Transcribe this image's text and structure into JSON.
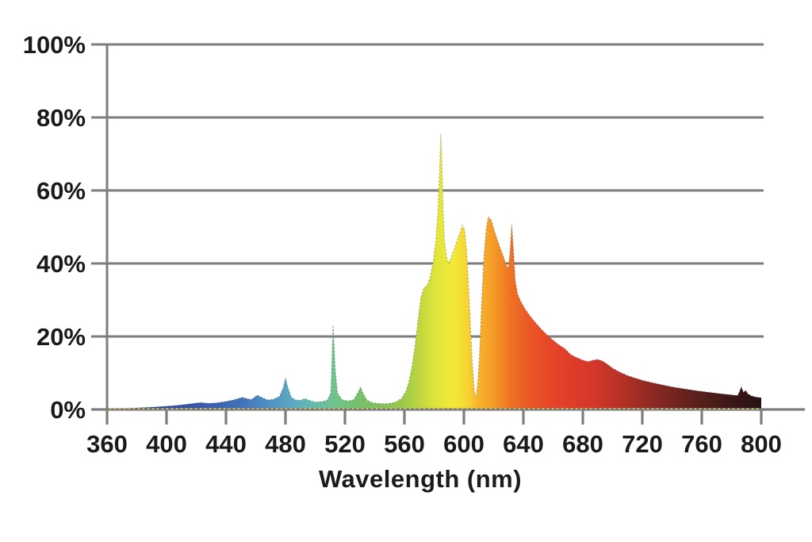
{
  "figure": {
    "background": "#ffffff"
  },
  "chart_data": {
    "type": "area",
    "title": "",
    "xlabel": "Wavelength (nm)",
    "ylabel": "",
    "x_range": [
      360,
      800
    ],
    "y_range": [
      0,
      100
    ],
    "x_ticks": [
      360,
      400,
      440,
      480,
      520,
      560,
      600,
      640,
      680,
      720,
      760,
      800
    ],
    "x_tick_labels": [
      "360",
      "400",
      "440",
      "480",
      "520",
      "560",
      "600",
      "640",
      "680",
      "720",
      "760",
      "800"
    ],
    "y_ticks": [
      0,
      20,
      40,
      60,
      80,
      100
    ],
    "y_tick_labels": [
      "0%",
      "20%",
      "40%",
      "60%",
      "80%",
      "100%"
    ],
    "grid": true,
    "legend_position": "none",
    "style": {
      "grid_color": "#7d7d7d",
      "label_color": "#1a1a1a",
      "edge_stroke": "rgba(40,40,40,0.4)",
      "baseline_dot_color": "#e6cf4b"
    },
    "spectrum_gradient": [
      [
        360,
        "#2b3a71"
      ],
      [
        395,
        "#3247a0"
      ],
      [
        425,
        "#3a5bac"
      ],
      [
        450,
        "#4272b8"
      ],
      [
        470,
        "#4f92c4"
      ],
      [
        487,
        "#5dadc0"
      ],
      [
        500,
        "#66bca8"
      ],
      [
        513,
        "#6fc48d"
      ],
      [
        527,
        "#75c170"
      ],
      [
        543,
        "#7fc25c"
      ],
      [
        558,
        "#97c94d"
      ],
      [
        570,
        "#bed73f"
      ],
      [
        582,
        "#e2e53b"
      ],
      [
        593,
        "#f1e938"
      ],
      [
        602,
        "#f6d532"
      ],
      [
        610,
        "#f7b32b"
      ],
      [
        620,
        "#f49a27"
      ],
      [
        632,
        "#ee7124"
      ],
      [
        645,
        "#ea5526"
      ],
      [
        658,
        "#e64628"
      ],
      [
        672,
        "#e03c29"
      ],
      [
        688,
        "#d2372a"
      ],
      [
        705,
        "#b83127"
      ],
      [
        725,
        "#8f2a24"
      ],
      [
        750,
        "#66211e"
      ],
      [
        775,
        "#3f1a18"
      ],
      [
        800,
        "#261113"
      ]
    ],
    "series": [
      {
        "name": "spectral-power-distribution",
        "unit": "percent-of-max",
        "points": [
          [
            360,
            0
          ],
          [
            366,
            0.15
          ],
          [
            373,
            0.3
          ],
          [
            381,
            0.45
          ],
          [
            389,
            0.6
          ],
          [
            397,
            0.8
          ],
          [
            404,
            1.0
          ],
          [
            411,
            1.3
          ],
          [
            417,
            1.6
          ],
          [
            423,
            1.9
          ],
          [
            428,
            1.7
          ],
          [
            433,
            1.8
          ],
          [
            439,
            2.1
          ],
          [
            445,
            2.6
          ],
          [
            451,
            3.3
          ],
          [
            454,
            3.0
          ],
          [
            457,
            2.7
          ],
          [
            461,
            3.9
          ],
          [
            464,
            3.3
          ],
          [
            468,
            2.6
          ],
          [
            472,
            2.8
          ],
          [
            476,
            3.6
          ],
          [
            478.5,
            6.0
          ],
          [
            480,
            8.6
          ],
          [
            481.5,
            6.2
          ],
          [
            484,
            3.3
          ],
          [
            487,
            2.6
          ],
          [
            490,
            2.5
          ],
          [
            493,
            3.0
          ],
          [
            496,
            2.5
          ],
          [
            500,
            2.0
          ],
          [
            504,
            2.1
          ],
          [
            508,
            2.5
          ],
          [
            510.5,
            4.5
          ],
          [
            512,
            23.2
          ],
          [
            513.5,
            11.0
          ],
          [
            515,
            4.5
          ],
          [
            518,
            2.7
          ],
          [
            522,
            2.3
          ],
          [
            526,
            2.7
          ],
          [
            529,
            4.9
          ],
          [
            530.5,
            6.2
          ],
          [
            532,
            4.6
          ],
          [
            535,
            2.5
          ],
          [
            539,
            1.8
          ],
          [
            544,
            1.6
          ],
          [
            549,
            1.6
          ],
          [
            554,
            2.0
          ],
          [
            558,
            3.0
          ],
          [
            561,
            5.0
          ],
          [
            563,
            7.5
          ],
          [
            565,
            11.5
          ],
          [
            567,
            17
          ],
          [
            569,
            24
          ],
          [
            571,
            30.5
          ],
          [
            573,
            33.2
          ],
          [
            575.5,
            34.2
          ],
          [
            577.5,
            36.5
          ],
          [
            579.5,
            41
          ],
          [
            581,
            46
          ],
          [
            582.5,
            54
          ],
          [
            583.5,
            64
          ],
          [
            584.5,
            75.5
          ],
          [
            585.3,
            67
          ],
          [
            586,
            55
          ],
          [
            587,
            46
          ],
          [
            588.5,
            41.5
          ],
          [
            590,
            40
          ],
          [
            591.5,
            41.8
          ],
          [
            593.5,
            44
          ],
          [
            595.5,
            46.3
          ],
          [
            597.5,
            48.6
          ],
          [
            599,
            50.4
          ],
          [
            600.5,
            49.2
          ],
          [
            601.8,
            44
          ],
          [
            603,
            35
          ],
          [
            604.3,
            24
          ],
          [
            605.6,
            13
          ],
          [
            607,
            5.5
          ],
          [
            608,
            3
          ],
          [
            609.2,
            7
          ],
          [
            610.5,
            15
          ],
          [
            612,
            30
          ],
          [
            613.5,
            42
          ],
          [
            615,
            49.5
          ],
          [
            616.5,
            52.8
          ],
          [
            618.5,
            51.8
          ],
          [
            620.5,
            49
          ],
          [
            622.5,
            46.5
          ],
          [
            624.5,
            44.2
          ],
          [
            626.5,
            42
          ],
          [
            628.3,
            39.6
          ],
          [
            629.8,
            38.6
          ],
          [
            631,
            43
          ],
          [
            632.2,
            50.7
          ],
          [
            633.3,
            44
          ],
          [
            634.5,
            35.5
          ],
          [
            636,
            31.8
          ],
          [
            638,
            29.8
          ],
          [
            641,
            27.6
          ],
          [
            644.5,
            25.6
          ],
          [
            648.5,
            23.6
          ],
          [
            653,
            21.6
          ],
          [
            658,
            19.6
          ],
          [
            663,
            18.0
          ],
          [
            668,
            16.6
          ],
          [
            672,
            15.0
          ],
          [
            676,
            14.2
          ],
          [
            680,
            13.5
          ],
          [
            683.5,
            13.1
          ],
          [
            687,
            13.5
          ],
          [
            690,
            13.7
          ],
          [
            693,
            13.3
          ],
          [
            696.5,
            12.4
          ],
          [
            700.5,
            11.2
          ],
          [
            705,
            10.2
          ],
          [
            710,
            9.3
          ],
          [
            715,
            8.6
          ],
          [
            721,
            7.9
          ],
          [
            727,
            7.3
          ],
          [
            734,
            6.7
          ],
          [
            741,
            6.1
          ],
          [
            749,
            5.6
          ],
          [
            757,
            5.1
          ],
          [
            765,
            4.7
          ],
          [
            773,
            4.3
          ],
          [
            780,
            4.0
          ],
          [
            784,
            3.8
          ],
          [
            785.4,
            4.9
          ],
          [
            786.6,
            6.2
          ],
          [
            788,
            4.7
          ],
          [
            789.6,
            5.2
          ],
          [
            791,
            4.3
          ],
          [
            793.5,
            3.7
          ],
          [
            796.5,
            3.4
          ],
          [
            800,
            3.2
          ]
        ]
      }
    ]
  }
}
